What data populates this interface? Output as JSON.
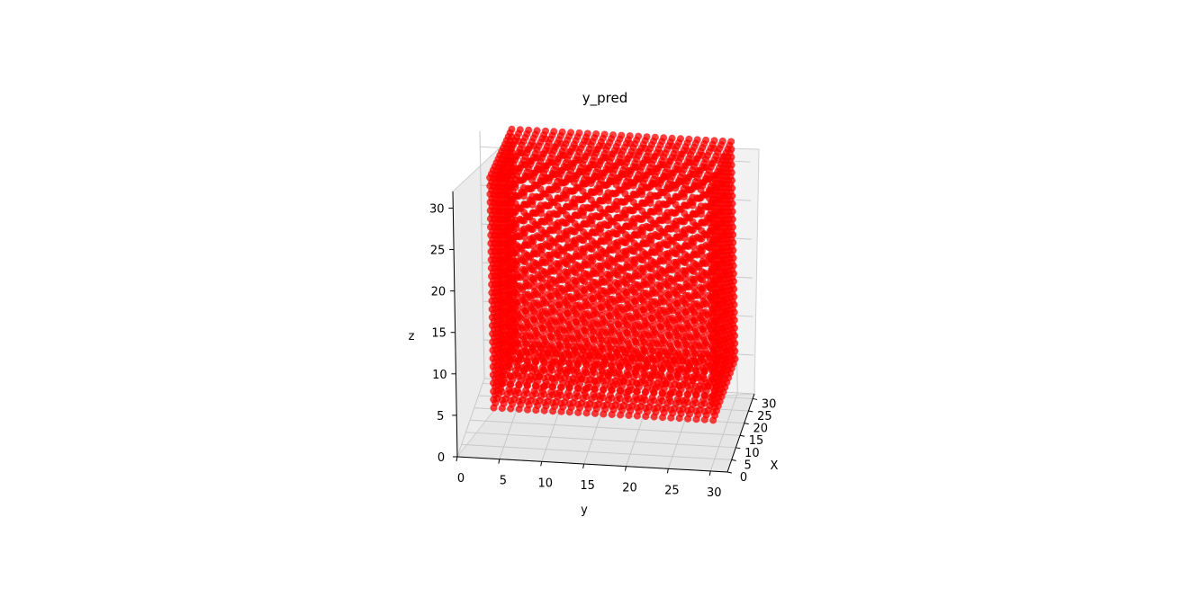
{
  "chart_data": {
    "type": "scatter",
    "projection": "3d",
    "title": "y_pred",
    "xlabel": "X",
    "ylabel": "y",
    "zlabel": "z",
    "xlim": [
      0,
      32
    ],
    "ylim": [
      0,
      32
    ],
    "zlim": [
      0,
      32
    ],
    "xticks": [
      "0",
      "5",
      "10",
      "15",
      "20",
      "25",
      "30"
    ],
    "yticks": [
      "0",
      "5",
      "10",
      "15",
      "20",
      "25",
      "30"
    ],
    "zticks": [
      "0",
      "5",
      "10",
      "15",
      "20",
      "25",
      "30"
    ],
    "grid": true,
    "marker_color": "#ff0000",
    "series": [
      {
        "description": "dense voxel-grid point cloud forming a roughly cubic solid",
        "x_range": [
          3,
          30
        ],
        "y_range": [
          4,
          30
        ],
        "z_range": [
          5,
          33
        ]
      }
    ]
  }
}
